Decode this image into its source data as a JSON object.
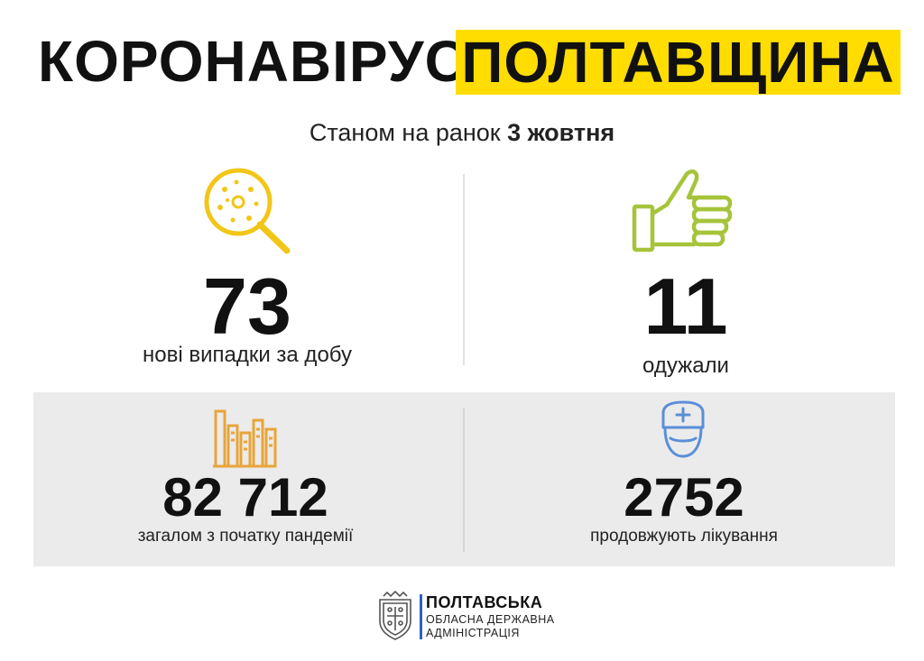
{
  "header": {
    "title_left": "КОРОНАВІРУС.",
    "title_right": "ПОЛТАВЩИНА",
    "highlight_color": "#ffdd00"
  },
  "subtitle": {
    "prefix": "Станом на ранок",
    "date": "3 жовтня"
  },
  "stats": {
    "new_cases": {
      "value": "73",
      "label": "нові випадки за добу",
      "icon": "virus-magnifier-icon",
      "color": "#f2c618"
    },
    "recovered": {
      "value": "11",
      "label": "одужали",
      "icon": "thumbs-up-icon",
      "color": "#a6c43a"
    },
    "total": {
      "value": "82 712",
      "label": "загалом з початку пандемії",
      "icon": "bar-chart-icon",
      "color": "#e8a53a"
    },
    "treatment": {
      "value": "2752",
      "label": "продовжують лікування",
      "icon": "doctor-icon",
      "color": "#5a8fd8"
    }
  },
  "footer": {
    "line1": "ПОЛТАВСЬКА",
    "line2": "ОБЛАСНА ДЕРЖАВНА",
    "line3": "АДМІНІСТРАЦІЯ",
    "emblem_icon": "coat-of-arms-icon"
  }
}
